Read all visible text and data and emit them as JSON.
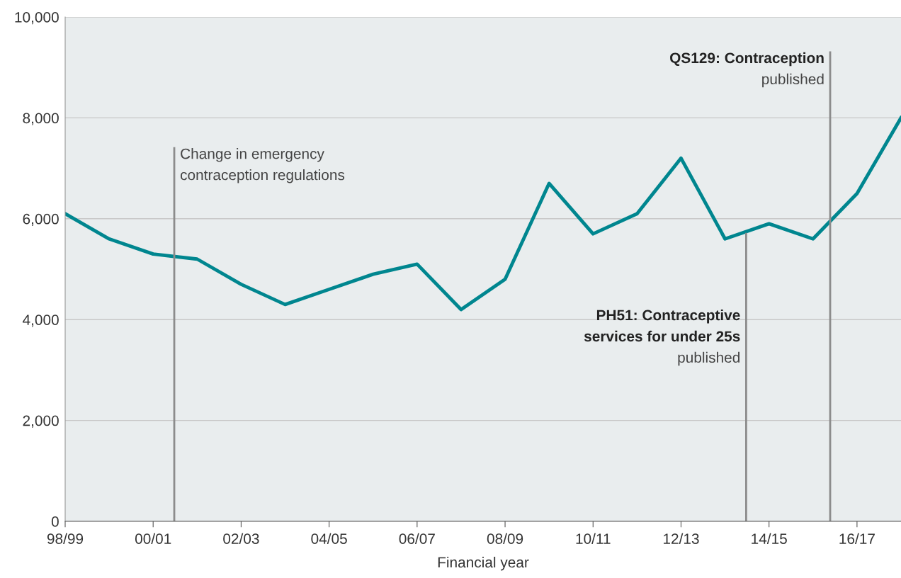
{
  "chart_data": {
    "type": "line",
    "xlabel": "Financial year",
    "categories": [
      "98/99",
      null,
      "00/01",
      null,
      "02/03",
      null,
      "04/05",
      null,
      "06/07",
      null,
      "08/09",
      null,
      "10/11",
      null,
      "12/13",
      null,
      "14/15",
      null,
      "16/17",
      null
    ],
    "series": [
      {
        "color": "#00868f",
        "values": [
          6100,
          5600,
          5300,
          5200,
          4700,
          4300,
          4600,
          4900,
          5100,
          4200,
          4800,
          6700,
          5700,
          6100,
          7200,
          5600,
          5900,
          5600,
          6500,
          8000
        ]
      }
    ],
    "ylim": [
      0,
      10000
    ],
    "yticks": [
      0,
      {
        "value": 2000,
        "label": "2,000"
      },
      {
        "value": 4000,
        "label": "4,000"
      },
      {
        "value": 6000,
        "label": "6,000"
      },
      {
        "value": 8000,
        "label": "8,000"
      },
      {
        "value": 10000,
        "label": "10,000"
      }
    ],
    "grid": "y",
    "line_style": "solid",
    "marker": "none",
    "annotations": [
      "Change in emergency\ncontraception regulations",
      "PH51: Contraceptive\nservices for under 25s\npublished",
      "QS129: Contraception\npublished"
    ]
  }
}
